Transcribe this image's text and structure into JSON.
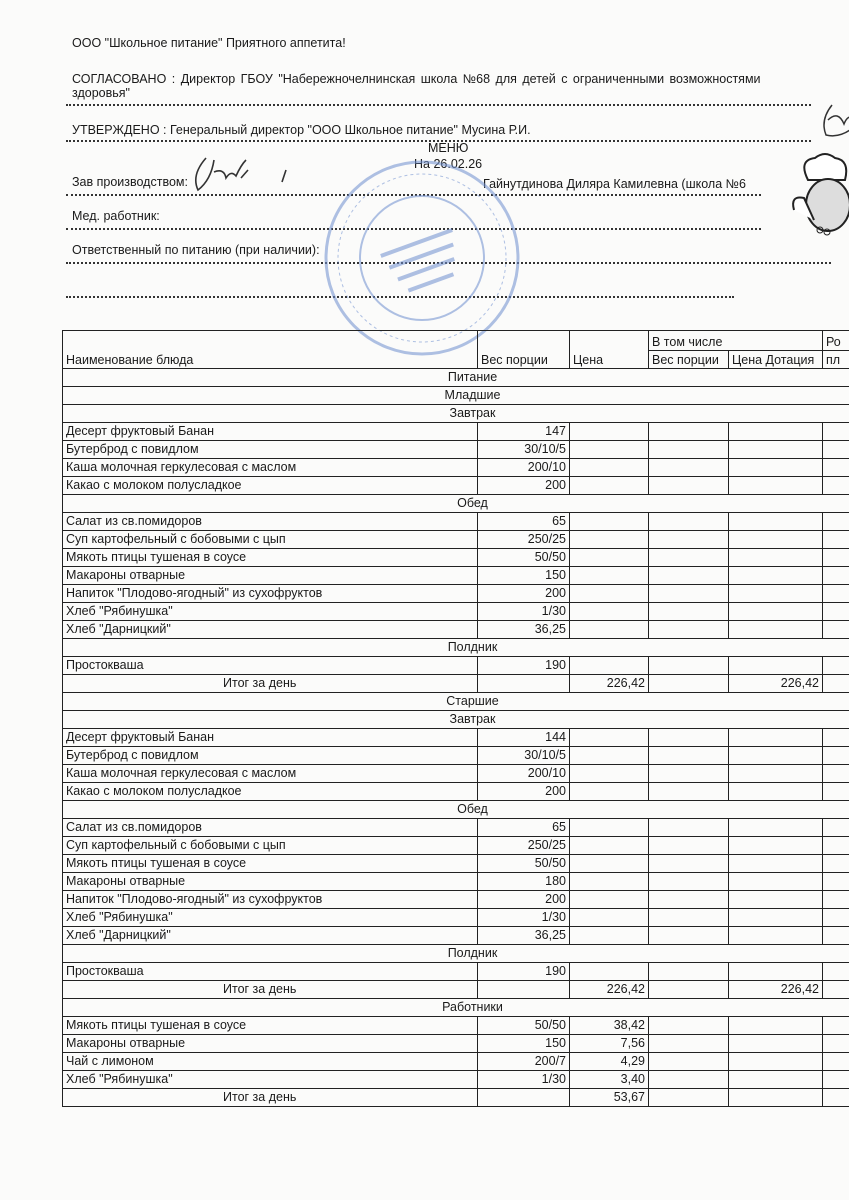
{
  "header": {
    "company_line": "ООО \"Школьное питание\" Приятного аппетита!",
    "agreed_line1": "СОГЛАСОВАНО : Директор ГБОУ \"Набережночелнинская школа №68 для детей с ограниченными возможностями",
    "agreed_line2": "здоровья\"",
    "approved_line": "УТВЕРЖДЕНО : Генеральный директор \"ООО Школьное питание\" Мусина Р.И.",
    "title": "МЕНЮ",
    "date": "На 26.02.26",
    "production_label": "Зав производством:",
    "production_name": "Гайнутдинова Диляра Камилевна (школа №6",
    "medic_label": "Мед. работник:",
    "responsible_label": "Ответственный по питанию (при наличии):"
  },
  "stamp": {
    "text": "ОГРН 1031616009525 Набережночелнинская школа №68 для детей с ограниченными возможностями здоровья",
    "color": "#6f8fcf"
  },
  "table": {
    "columns": {
      "name": "Наименование блюда",
      "weight": "Вес порции",
      "price": "Цена",
      "including": "В том числе",
      "sub_weight": "Вес порции",
      "sub_price": "Цена Дотация",
      "parent_top": "Ро",
      "parent_bottom": "пл"
    },
    "rows": [
      {
        "type": "section",
        "label": "Питание"
      },
      {
        "type": "section",
        "label": "Младшие"
      },
      {
        "type": "section",
        "label": "Завтрак"
      },
      {
        "type": "item",
        "name": "Десерт фруктовый Банан",
        "weight": "147",
        "price": ""
      },
      {
        "type": "item",
        "name": "Бутерброд с повидлом",
        "weight": "30/10/5",
        "price": ""
      },
      {
        "type": "item",
        "name": "Каша молочная геркулесовая с маслом",
        "weight": "200/10",
        "price": ""
      },
      {
        "type": "item",
        "name": "Какао с молоком полусладкое",
        "weight": "200",
        "price": ""
      },
      {
        "type": "section",
        "label": "Обед"
      },
      {
        "type": "item",
        "name": "Салат из св.помидоров",
        "weight": "65",
        "price": ""
      },
      {
        "type": "item",
        "name": "Суп картофельный с бобовыми с цып",
        "weight": "250/25",
        "price": ""
      },
      {
        "type": "item",
        "name": "Мякоть птицы тушеная в соусе",
        "weight": "50/50",
        "price": ""
      },
      {
        "type": "item",
        "name": "Макароны отварные",
        "weight": "150",
        "price": ""
      },
      {
        "type": "item",
        "name": "Напиток \"Плодово-ягодный\" из сухофруктов",
        "weight": "200",
        "price": ""
      },
      {
        "type": "item",
        "name": "Хлеб \"Рябинушка\"",
        "weight": "1/30",
        "price": ""
      },
      {
        "type": "item",
        "name": "Хлеб \"Дарницкий\"",
        "weight": "36,25",
        "price": ""
      },
      {
        "type": "section",
        "label": "Полдник"
      },
      {
        "type": "item",
        "name": "Простокваша",
        "weight": "190",
        "price": ""
      },
      {
        "type": "total",
        "label": "Итог за день",
        "price": "226,42",
        "sub_price": "226,42"
      },
      {
        "type": "section",
        "label": "Старшие"
      },
      {
        "type": "section",
        "label": "Завтрак"
      },
      {
        "type": "item",
        "name": "Десерт фруктовый Банан",
        "weight": "144",
        "price": ""
      },
      {
        "type": "item",
        "name": "Бутерброд с повидлом",
        "weight": "30/10/5",
        "price": ""
      },
      {
        "type": "item",
        "name": "Каша молочная геркулесовая с маслом",
        "weight": "200/10",
        "price": ""
      },
      {
        "type": "item",
        "name": "Какао с молоком полусладкое",
        "weight": "200",
        "price": ""
      },
      {
        "type": "section",
        "label": "Обед"
      },
      {
        "type": "item",
        "name": "Салат из св.помидоров",
        "weight": "65",
        "price": ""
      },
      {
        "type": "item",
        "name": "Суп картофельный с бобовыми с цып",
        "weight": "250/25",
        "price": ""
      },
      {
        "type": "item",
        "name": "Мякоть птицы тушеная в соусе",
        "weight": "50/50",
        "price": ""
      },
      {
        "type": "item",
        "name": "Макароны отварные",
        "weight": "180",
        "price": ""
      },
      {
        "type": "item",
        "name": "Напиток \"Плодово-ягодный\" из сухофруктов",
        "weight": "200",
        "price": ""
      },
      {
        "type": "item",
        "name": "Хлеб \"Рябинушка\"",
        "weight": "1/30",
        "price": ""
      },
      {
        "type": "item",
        "name": "Хлеб \"Дарницкий\"",
        "weight": "36,25",
        "price": ""
      },
      {
        "type": "section",
        "label": "Полдник"
      },
      {
        "type": "item",
        "name": "Простокваша",
        "weight": "190",
        "price": ""
      },
      {
        "type": "total",
        "label": "Итог за день",
        "price": "226,42",
        "sub_price": "226,42"
      },
      {
        "type": "section",
        "label": "Работники"
      },
      {
        "type": "item",
        "name": "Мякоть птицы тушеная в соусе",
        "weight": "50/50",
        "price": "38,42"
      },
      {
        "type": "item",
        "name": "Макароны отварные",
        "weight": "150",
        "price": "7,56"
      },
      {
        "type": "item",
        "name": "Чай с лимоном",
        "weight": "200/7",
        "price": "4,29"
      },
      {
        "type": "item",
        "name": "Хлеб \"Рябинушка\"",
        "weight": "1/30",
        "price": "3,40"
      },
      {
        "type": "total",
        "label": "Итог за день",
        "price": "53,67",
        "sub_price": ""
      }
    ]
  }
}
